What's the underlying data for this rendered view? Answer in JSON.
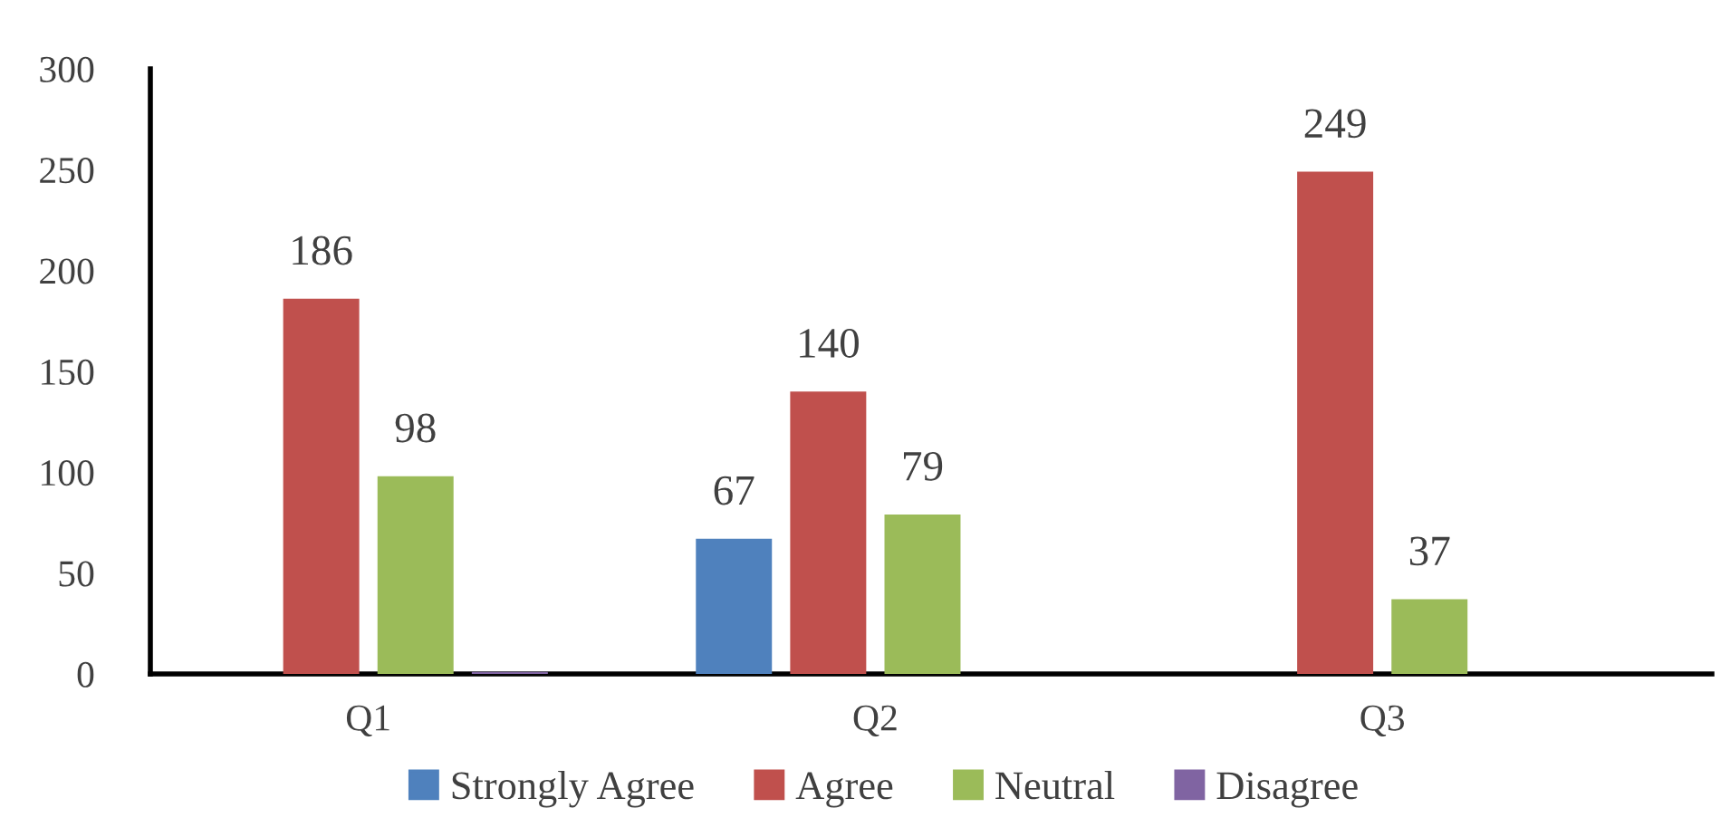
{
  "chart_data": {
    "type": "bar",
    "categories": [
      "Q1",
      "Q2",
      "Q3"
    ],
    "series": [
      {
        "name": "Strongly Agree",
        "color": "#4f81bd",
        "values": [
          null,
          67,
          null
        ],
        "value_labels": [
          null,
          "67",
          null
        ]
      },
      {
        "name": "Agree",
        "color": "#c0504d",
        "values": [
          186,
          140,
          249
        ],
        "value_labels": [
          "186",
          "140",
          "249"
        ]
      },
      {
        "name": "Neutral",
        "color": "#9bbb59",
        "values": [
          98,
          79,
          37
        ],
        "value_labels": [
          "98",
          "79",
          "37"
        ]
      },
      {
        "name": "Disagree",
        "color": "#8064a2",
        "values": [
          1,
          null,
          null
        ],
        "value_labels": [
          null,
          null,
          null
        ]
      }
    ],
    "ylim": [
      0,
      300
    ],
    "yticks": [
      0,
      50,
      100,
      150,
      200,
      250,
      300
    ],
    "grid": false,
    "legend": "bottom"
  }
}
